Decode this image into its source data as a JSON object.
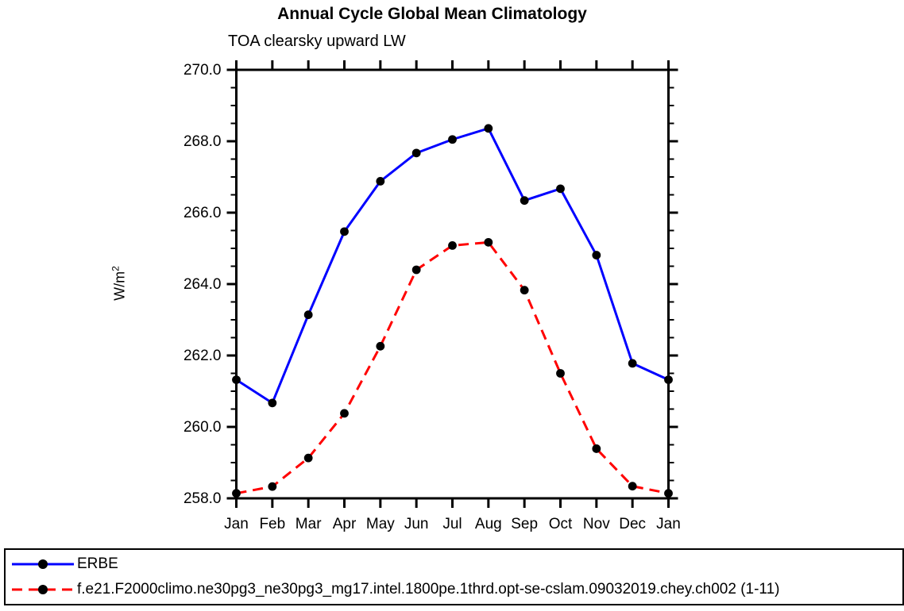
{
  "title": "Annual Cycle Global Mean Climatology",
  "subtitle": "TOA clearsky upward LW",
  "ylabel": {
    "base": "W/m",
    "exponent": "2"
  },
  "chart_data": {
    "type": "line",
    "title": "Annual Cycle Global Mean Climatology",
    "subtitle": "TOA clearsky upward LW",
    "ylabel": "W/m^2",
    "categories": [
      "Jan",
      "Feb",
      "Mar",
      "Apr",
      "May",
      "Jun",
      "Jul",
      "Aug",
      "Sep",
      "Oct",
      "Nov",
      "Dec",
      "Jan"
    ],
    "series": [
      {
        "name": "ERBE",
        "color": "#0000ff",
        "line_style": "solid",
        "marker": "filled-circle",
        "marker_color": "#000000",
        "values": [
          261.32,
          260.67,
          263.14,
          265.47,
          266.88,
          267.67,
          268.05,
          268.36,
          266.34,
          266.67,
          264.81,
          261.78,
          261.32
        ]
      },
      {
        "name": "f.e21.F2000climo.ne30pg3_ne30pg3_mg17.intel.1800pe.1thrd.opt-se-cslam.09032019.chey.ch002 (1-11)",
        "color": "#ff0000",
        "line_style": "dashed",
        "marker": "filled-circle",
        "marker_color": "#000000",
        "values": [
          258.14,
          258.33,
          259.13,
          260.38,
          262.26,
          264.4,
          265.08,
          265.17,
          263.83,
          261.5,
          259.39,
          258.34,
          258.14
        ]
      }
    ],
    "ylim": [
      258.0,
      270.0
    ],
    "ytick_major": 2.0,
    "ytick_minor": 0.5,
    "ytick_decimals": 1,
    "xlim_categories": true,
    "grid": false,
    "frame": "box-with-outward-ticks",
    "legend_position": "bottom",
    "axis_color": "#000000"
  }
}
